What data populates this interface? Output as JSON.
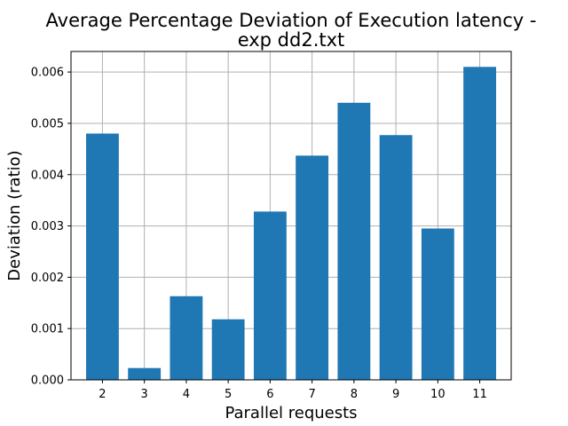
{
  "chart_data": {
    "type": "bar",
    "title_line1": "Average Percentage Deviation of Execution latency -",
    "title_line2": "exp dd2.txt",
    "xlabel": "Parallel requests",
    "ylabel": "Deviation (ratio)",
    "categories": [
      "2",
      "3",
      "4",
      "5",
      "6",
      "7",
      "8",
      "9",
      "10",
      "11"
    ],
    "values": [
      0.0048,
      0.00023,
      0.00163,
      0.00118,
      0.00328,
      0.00437,
      0.0054,
      0.00477,
      0.00295,
      0.0061
    ],
    "ylim": [
      0,
      0.0064
    ],
    "yticks": [
      0.0,
      0.001,
      0.002,
      0.003,
      0.004,
      0.005,
      0.006
    ],
    "ytick_labels": [
      "0.000",
      "0.001",
      "0.002",
      "0.003",
      "0.004",
      "0.005",
      "0.006"
    ],
    "grid": true,
    "bar_color": "#1f77b4"
  }
}
